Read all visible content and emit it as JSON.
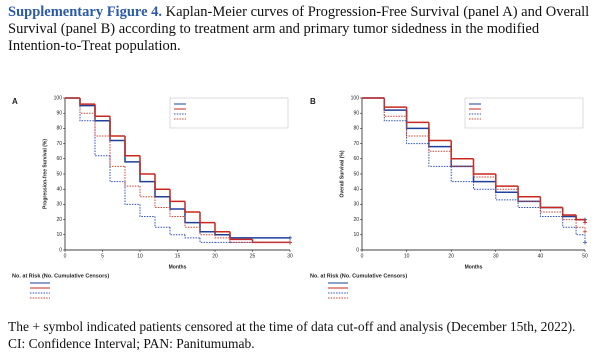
{
  "caption": {
    "label": "Supplementary Figure 4.",
    "text": "Kaplan-Meier curves of Progression-Free Survival (panel A) and Overall Survival (panel B) according to treatment arm and primary tumor sidedness in the modified Intention-to-Treat population."
  },
  "footnote": "The + symbol indicated patients censored at the time of data cut-off and analysis (December 15th, 2022). CI: Confidence Interval; PAN: Panitumumab.",
  "chart_data": [
    {
      "type": "line",
      "panel": "A",
      "x_label": "Months",
      "y_label": "Progression-free Survival (%)",
      "risk_title": "No. at Risk (No. Cumulative Censors)",
      "xlim": [
        0,
        30
      ],
      "xticks": [
        0,
        5,
        10,
        15,
        20,
        25,
        30
      ],
      "ylim": [
        0,
        100
      ],
      "yticks": [
        0,
        10,
        20,
        30,
        40,
        50,
        60,
        70,
        80,
        90,
        100
      ],
      "x": [
        0,
        2,
        4,
        6,
        8,
        10,
        12,
        14,
        16,
        18,
        20,
        22,
        25,
        30
      ],
      "series": [
        {
          "color": "#1f3f99",
          "dash": "solid",
          "values": [
            100,
            95,
            85,
            72,
            58,
            45,
            35,
            27,
            18,
            12,
            10,
            8,
            8,
            8
          ]
        },
        {
          "color": "#c8281e",
          "dash": "solid",
          "values": [
            100,
            96,
            88,
            75,
            62,
            50,
            40,
            32,
            25,
            18,
            12,
            7,
            5,
            5
          ]
        },
        {
          "color": "#3050c0",
          "dash": "dotted",
          "values": [
            100,
            85,
            62,
            45,
            30,
            22,
            15,
            10,
            8,
            5,
            5,
            5,
            5,
            5
          ]
        },
        {
          "color": "#d04030",
          "dash": "dotted",
          "values": [
            100,
            90,
            75,
            55,
            42,
            35,
            28,
            22,
            15,
            10,
            8,
            5,
            5,
            5
          ]
        }
      ]
    },
    {
      "type": "line",
      "panel": "B",
      "x_label": "Months",
      "y_label": "Overall Survival (%)",
      "risk_title": "No. at Risk (No. Cumulative Censors)",
      "xlim": [
        0,
        50
      ],
      "xticks": [
        0,
        10,
        20,
        30,
        40,
        50
      ],
      "ylim": [
        0,
        100
      ],
      "yticks": [
        0,
        10,
        20,
        30,
        40,
        50,
        60,
        70,
        80,
        90,
        100
      ],
      "x": [
        0,
        5,
        10,
        15,
        20,
        25,
        30,
        35,
        40,
        45,
        48,
        50
      ],
      "series": [
        {
          "color": "#1f3f99",
          "dash": "solid",
          "values": [
            100,
            92,
            80,
            68,
            55,
            45,
            38,
            32,
            28,
            22,
            20,
            20
          ]
        },
        {
          "color": "#c8281e",
          "dash": "solid",
          "values": [
            100,
            94,
            84,
            72,
            60,
            50,
            42,
            35,
            28,
            23,
            20,
            18
          ]
        },
        {
          "color": "#3050c0",
          "dash": "dotted",
          "values": [
            100,
            85,
            70,
            55,
            45,
            40,
            33,
            28,
            22,
            15,
            10,
            5
          ]
        },
        {
          "color": "#d04030",
          "dash": "dotted",
          "values": [
            100,
            88,
            75,
            65,
            55,
            48,
            40,
            32,
            25,
            20,
            15,
            12
          ]
        }
      ]
    }
  ]
}
